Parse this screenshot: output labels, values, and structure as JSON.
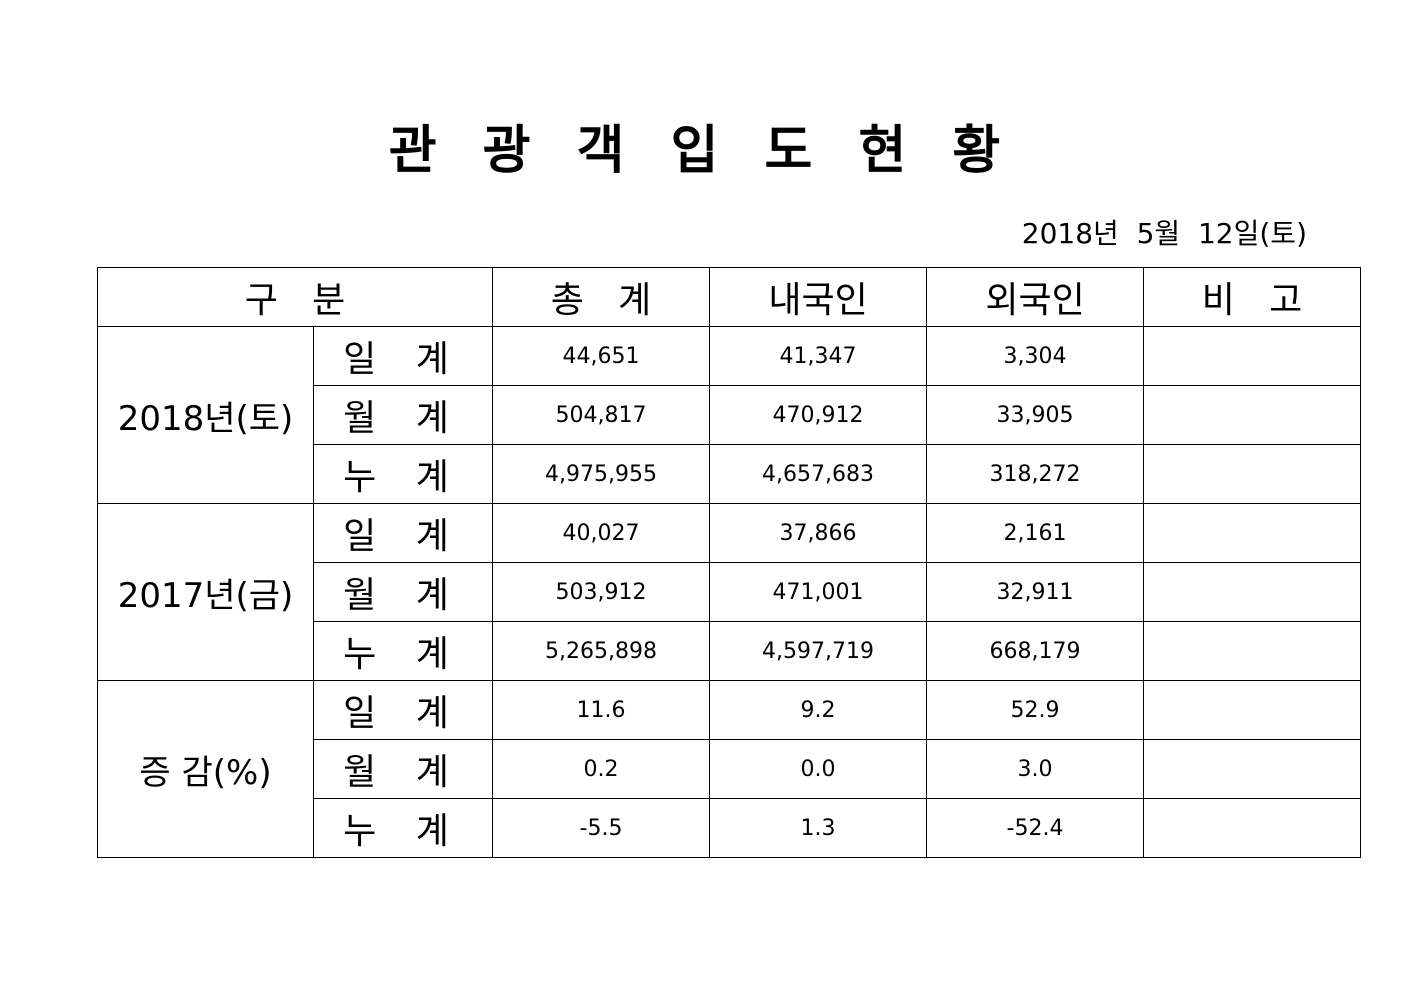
{
  "header": {
    "title": "관 광 객 입 도 현 황",
    "date": "2018년  5월  12일(토)"
  },
  "table": {
    "columns": [
      "구   분",
      "총   계",
      "내국인",
      "외국인",
      "비   고"
    ],
    "groups": [
      {
        "label": "2018년(토)",
        "rows": [
          {
            "label": "일 계",
            "values": [
              "44,651",
              "41,347",
              "3,304"
            ]
          },
          {
            "label": "월 계",
            "values": [
              "504,817",
              "470,912",
              "33,905"
            ]
          },
          {
            "label": "누 계",
            "values": [
              "4,975,955",
              "4,657,683",
              "318,272"
            ]
          }
        ]
      },
      {
        "label": "2017년(금)",
        "rows": [
          {
            "label": "일 계",
            "values": [
              "40,027",
              "37,866",
              "2,161"
            ]
          },
          {
            "label": "월 계",
            "values": [
              "503,912",
              "471,001",
              "32,911"
            ]
          },
          {
            "label": "누 계",
            "values": [
              "5,265,898",
              "4,597,719",
              "668,179"
            ]
          }
        ]
      },
      {
        "label": "증 감(%)",
        "rows": [
          {
            "label": "일 계",
            "values": [
              "11.6",
              "9.2",
              "52.9"
            ]
          },
          {
            "label": "월 계",
            "values": [
              "0.2",
              "0.0",
              "3.0"
            ]
          },
          {
            "label": "누 계",
            "values": [
              "-5.5",
              "1.3",
              "-52.4"
            ]
          }
        ]
      }
    ]
  }
}
